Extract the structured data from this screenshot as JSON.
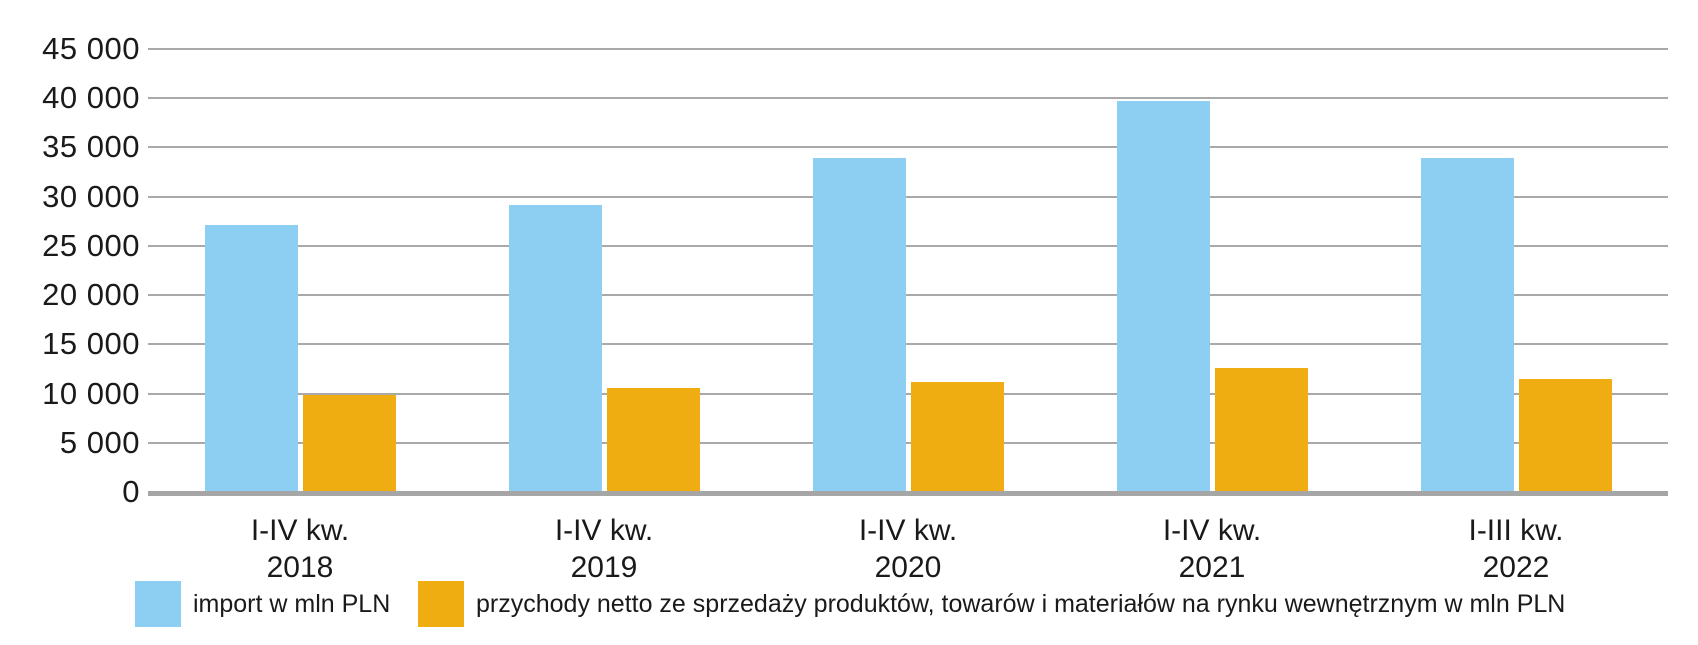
{
  "chart_data": {
    "type": "bar",
    "title": "",
    "xlabel": "",
    "ylabel": "",
    "categories": [
      "I-IV kw.\n2018",
      "I-IV kw.\n2019",
      "I-IV kw.\n2020",
      "I-IV kw.\n2021",
      "I-III kw.\n2022"
    ],
    "series": [
      {
        "name": "import w mln PLN",
        "color": "#8DCFF2",
        "values": [
          27100,
          29200,
          33900,
          39700,
          33900
        ]
      },
      {
        "name": "przychody netto ze sprzedaży produktów, towarów i materiałów na rynku wewnętrznym w mln PLN",
        "color": "#F0AD12",
        "values": [
          9900,
          10600,
          11200,
          12600,
          11500
        ]
      }
    ],
    "ylim": [
      0,
      45000
    ],
    "ytick_step": 5000,
    "ytick_labels": [
      "45 000",
      "40 000",
      "35 000",
      "30 000",
      "25 000",
      "20 000",
      "15 000",
      "10 000",
      "5 000",
      "0"
    ],
    "grid": "horizontal",
    "legend_position": "bottom-left",
    "colors": {
      "gridline": "#a9a9a9",
      "axis": "#a6a6a6",
      "text": "#1a1a1a",
      "background": "#ffffff"
    }
  }
}
